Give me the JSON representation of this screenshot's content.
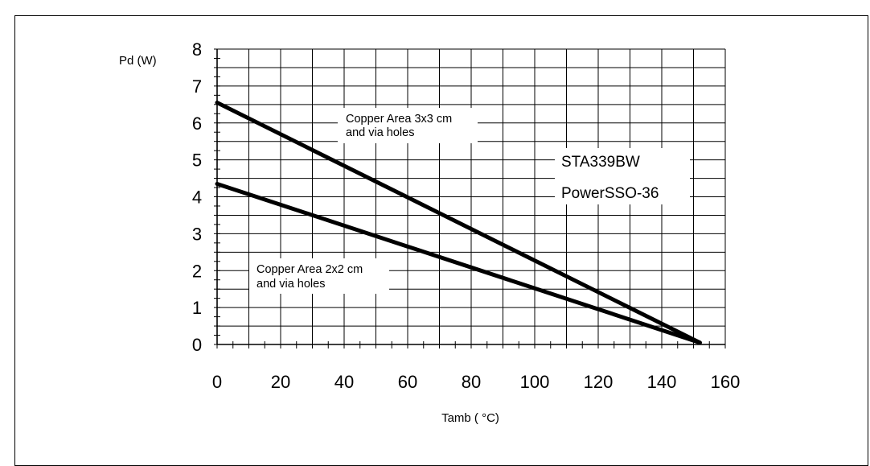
{
  "chart_data": {
    "type": "line",
    "title": "",
    "xlabel": "Tamb ( °C)",
    "ylabel": "Pd (W)",
    "xlim": [
      0,
      160
    ],
    "ylim": [
      0,
      8
    ],
    "x_ticks": [
      "0",
      "20",
      "40",
      "60",
      "80",
      "100",
      "120",
      "140",
      "160"
    ],
    "y_ticks": [
      "0",
      "1",
      "2",
      "3",
      "4",
      "5",
      "6",
      "7",
      "8"
    ],
    "grid": true,
    "series": [
      {
        "label": "Copper Area 3x3 cm and via holes",
        "x": [
          0,
          152
        ],
        "y": [
          6.55,
          0.05
        ]
      },
      {
        "label": "Copper Area 2x2 cm and via holes",
        "x": [
          0,
          152
        ],
        "y": [
          4.35,
          0.05
        ]
      }
    ],
    "annotations": [
      {
        "line1": "Copper Area 3x3 cm",
        "line2": "and via holes"
      },
      {
        "line1": "Copper Area 2x2 cm",
        "line2": "and via holes"
      }
    ],
    "device_box": {
      "line1": "STA339BW",
      "line2": "PowerSSO-36"
    }
  },
  "colors": {
    "line": "#000000",
    "grid": "#000000",
    "background": "#ffffff"
  }
}
